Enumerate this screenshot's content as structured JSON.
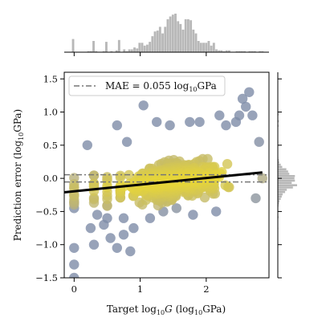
{
  "chart_data": {
    "type": "scatter",
    "title": "",
    "xlabel": {
      "prefix": "Target log",
      "sub": "10",
      "italic": "G",
      "suffix": " (log",
      "sub2": "10",
      "unit": "GPa)"
    },
    "ylabel": {
      "prefix": "Prediction error (log",
      "sub": "10",
      "unit": "GPa)"
    },
    "xlim": [
      -0.15,
      2.95
    ],
    "ylim": [
      -1.5,
      1.6
    ],
    "xticks": [
      {
        "value": 0,
        "label": "0"
      },
      {
        "value": 1,
        "label": "1"
      },
      {
        "value": 2,
        "label": "2"
      }
    ],
    "yticks": [
      {
        "value": 1.5,
        "label": "1.5"
      },
      {
        "value": 1.0,
        "label": "1.0"
      },
      {
        "value": 0.5,
        "label": "0.5"
      },
      {
        "value": 0.0,
        "label": "0.0"
      },
      {
        "value": -0.5,
        "label": "−0.5"
      },
      {
        "value": -1.0,
        "label": "−1.0"
      },
      {
        "value": -1.5,
        "label": "−1.5"
      }
    ],
    "mae_value": 0.055,
    "legend": {
      "position": "top-left",
      "prefix": "MAE = 0.055 log",
      "sub": "10",
      "unit": "GPa"
    },
    "fit_line": {
      "x": [
        -0.15,
        2.85
      ],
      "y": [
        -0.21,
        0.09
      ],
      "color": "#000000"
    },
    "mae_lines": {
      "y": [
        0.055,
        -0.055
      ],
      "color": "#777777",
      "style": "dash-dot"
    },
    "colors": {
      "dense": "#e6d53a",
      "mid": "#b5ae80",
      "sparse": "#7e8ca8",
      "hist": "#b8b8b8"
    },
    "outliers": [
      {
        "x": 2.65,
        "y": 1.3
      },
      {
        "x": 1.05,
        "y": 1.1
      },
      {
        "x": 2.55,
        "y": 1.2
      },
      {
        "x": 2.6,
        "y": 1.08
      },
      {
        "x": 2.5,
        "y": 0.95
      },
      {
        "x": 2.7,
        "y": 0.95
      },
      {
        "x": 2.2,
        "y": 0.95
      },
      {
        "x": 1.9,
        "y": 0.85
      },
      {
        "x": 2.3,
        "y": 0.8
      },
      {
        "x": 2.45,
        "y": 0.85
      },
      {
        "x": 0.65,
        "y": 0.8
      },
      {
        "x": 1.25,
        "y": 0.85
      },
      {
        "x": 1.45,
        "y": 0.8
      },
      {
        "x": 1.75,
        "y": 0.85
      },
      {
        "x": 0.0,
        "y": -1.05
      },
      {
        "x": 0.0,
        "y": -1.3
      },
      {
        "x": 0.0,
        "y": -1.5
      },
      {
        "x": 0.3,
        "y": -1.0
      },
      {
        "x": 0.25,
        "y": -0.75
      },
      {
        "x": 0.45,
        "y": -0.7
      },
      {
        "x": 0.55,
        "y": -0.9
      },
      {
        "x": 0.75,
        "y": -0.85
      },
      {
        "x": 0.65,
        "y": -1.05
      },
      {
        "x": 0.85,
        "y": -1.1
      },
      {
        "x": 0.9,
        "y": -0.75
      },
      {
        "x": 0.5,
        "y": -0.6
      },
      {
        "x": 0.35,
        "y": -0.55
      },
      {
        "x": 0.75,
        "y": -0.6
      },
      {
        "x": 1.15,
        "y": -0.6
      },
      {
        "x": 1.35,
        "y": -0.5
      },
      {
        "x": 1.55,
        "y": -0.45
      },
      {
        "x": 1.8,
        "y": -0.55
      },
      {
        "x": 2.15,
        "y": -0.5
      },
      {
        "x": 0.0,
        "y": -0.45
      },
      {
        "x": 0.2,
        "y": 0.5
      },
      {
        "x": 0.8,
        "y": 0.55
      },
      {
        "x": 2.8,
        "y": 0.55
      },
      {
        "x": 2.75,
        "y": -0.3
      },
      {
        "x": 2.85,
        "y": 0.0
      }
    ]
  }
}
